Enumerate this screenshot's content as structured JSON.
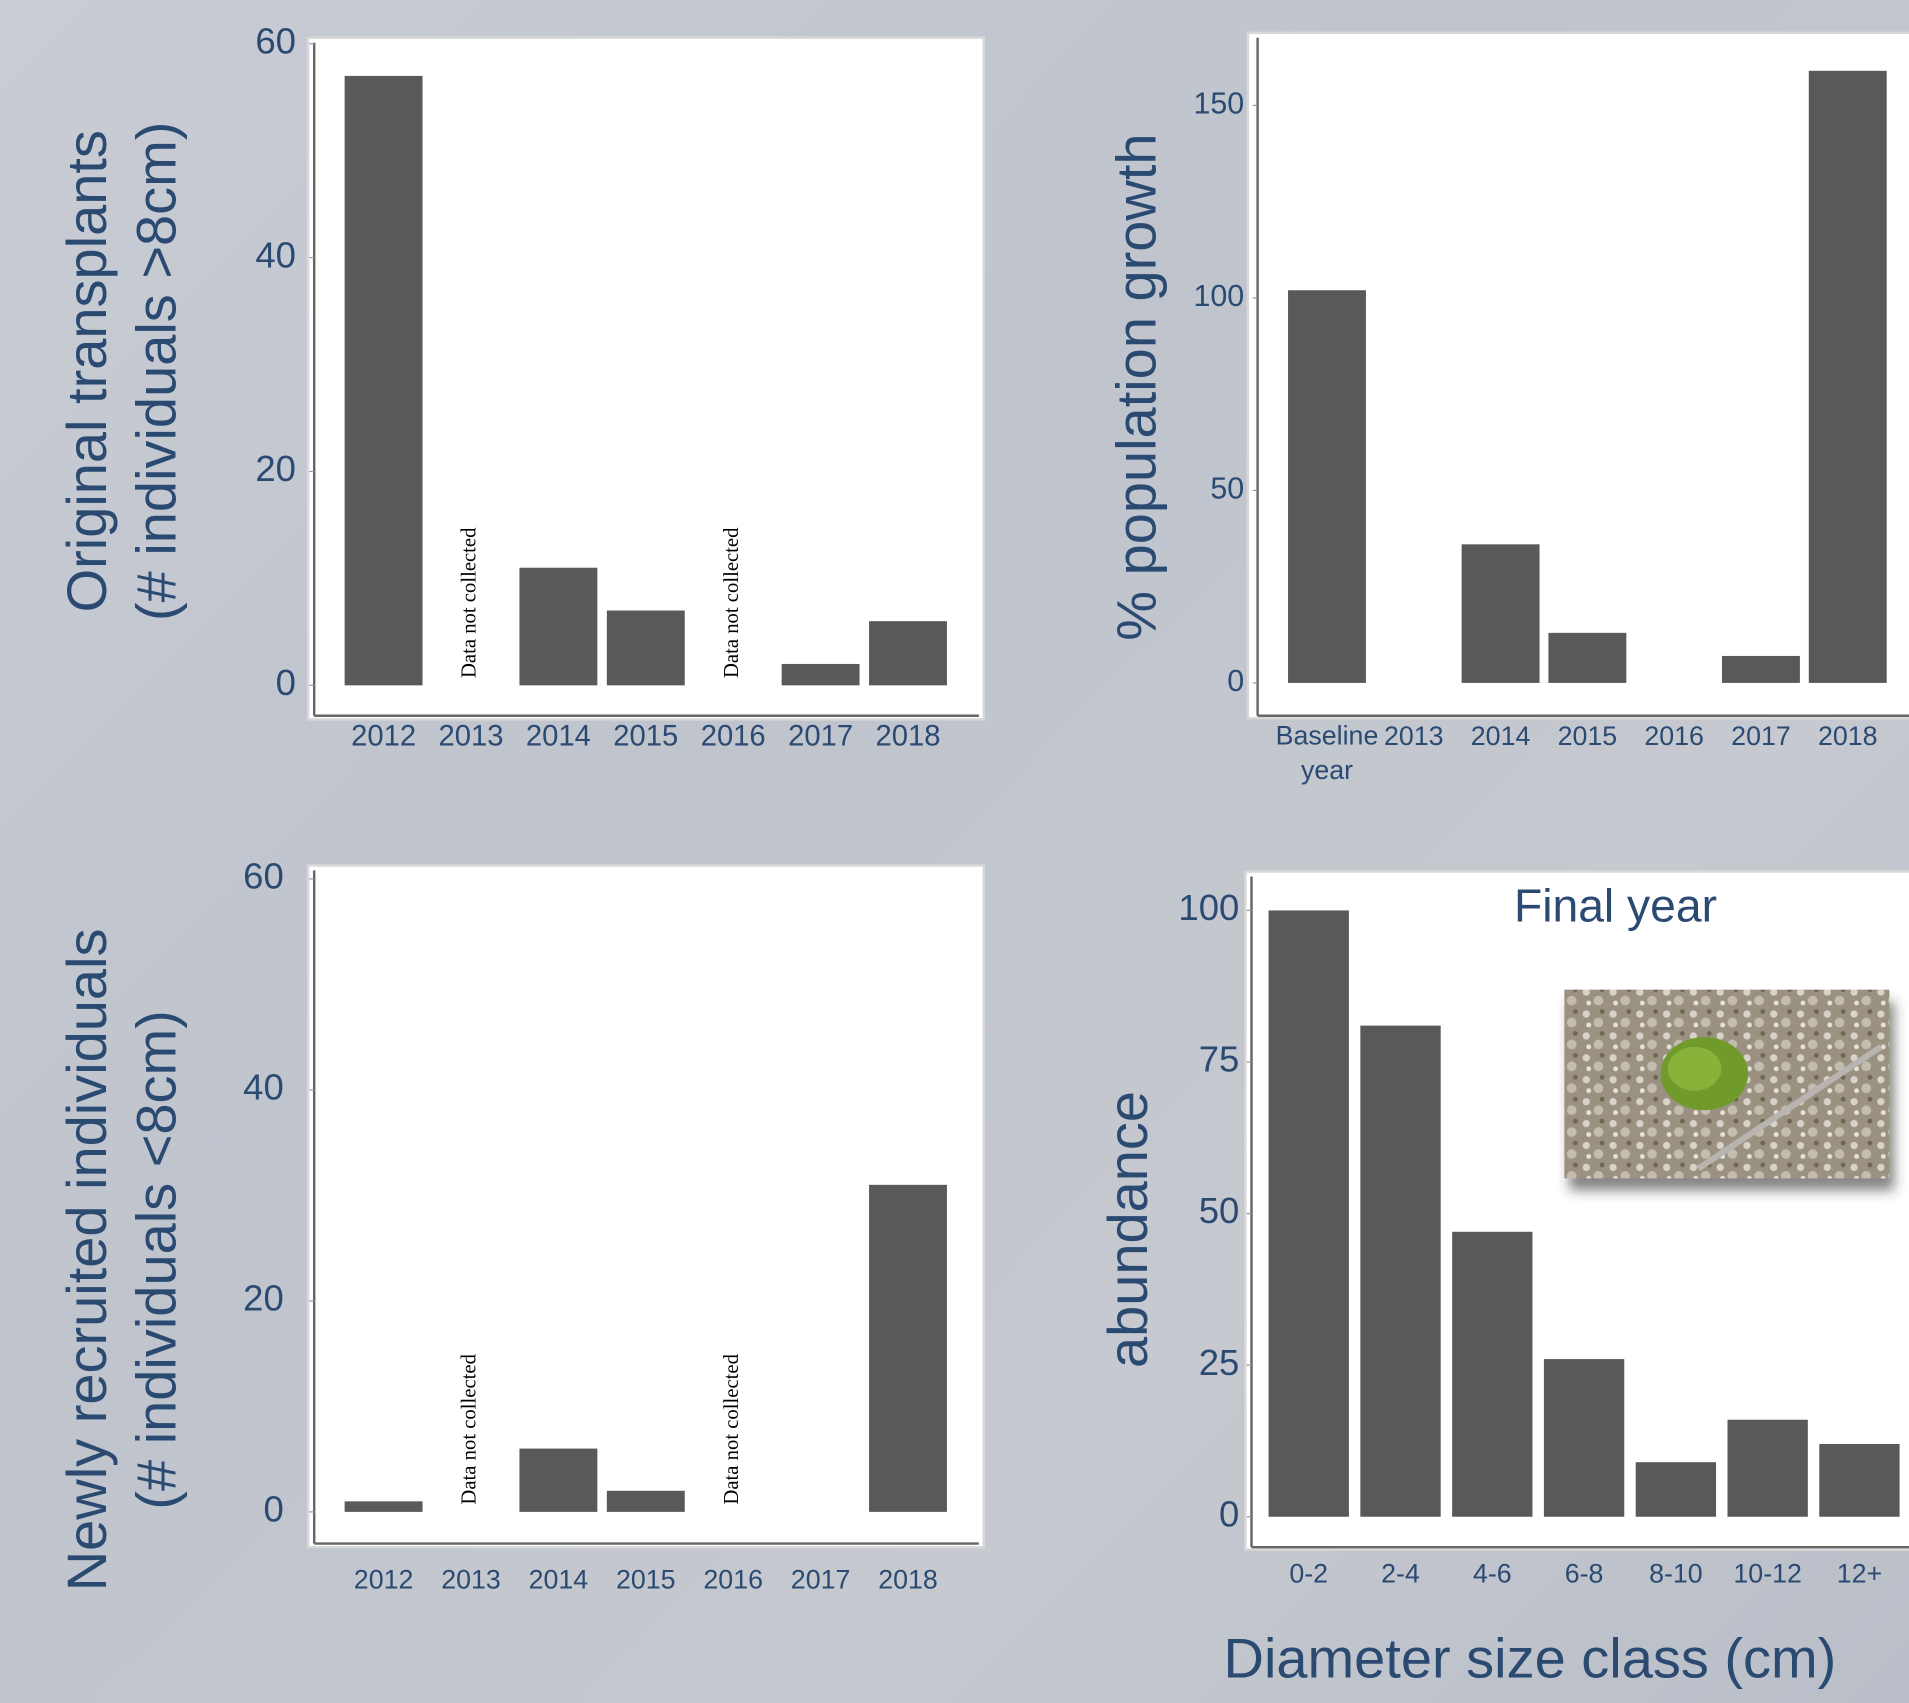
{
  "chart_data": [
    {
      "type": "bar",
      "ylabel": [
        "Original transplants",
        "(# individuals >8cm)"
      ],
      "categories": [
        "2012",
        "2013",
        "2014",
        "2015",
        "2016",
        "2017",
        "2018"
      ],
      "values": [
        57,
        null,
        11,
        7,
        null,
        2,
        6
      ],
      "color": "#595959",
      "annotation": "Data not collected",
      "ylim": [
        0,
        60
      ],
      "yticks": [
        0,
        20,
        40,
        60
      ]
    },
    {
      "type": "bar",
      "ylabel": [
        "% population growth"
      ],
      "categories": [
        "Baseline year",
        "2013",
        "2014",
        "2015",
        "2016",
        "2017",
        "2018"
      ],
      "values": [
        102,
        null,
        36,
        13,
        null,
        7,
        159
      ],
      "color": "#595959",
      "ylim": [
        0,
        160
      ],
      "yticks": [
        0,
        50,
        100,
        150
      ]
    },
    {
      "type": "bar",
      "ylabel": [
        "Newly recruited individuals",
        "(# individuals <8cm)"
      ],
      "categories": [
        "2012",
        "2013",
        "2014",
        "2015",
        "2016",
        "2017",
        "2018"
      ],
      "values": [
        1,
        null,
        6,
        2,
        null,
        0,
        31
      ],
      "color": "#595959",
      "annotation": "Data not collected",
      "ylim": [
        0,
        60
      ],
      "yticks": [
        0,
        20,
        40,
        60
      ]
    },
    {
      "type": "bar",
      "title": "Final year",
      "ylabel": [
        "abundance"
      ],
      "xlabel": "Diameter size class (cm)",
      "categories": [
        "0-2",
        "2-4",
        "4-6",
        "6-8",
        "8-10",
        "10-12",
        "12+"
      ],
      "values": [
        100,
        81,
        47,
        26,
        9,
        16,
        12
      ],
      "color": "#595959",
      "ylim": [
        0,
        105
      ],
      "yticks": [
        0,
        25,
        50,
        75,
        100
      ]
    }
  ]
}
